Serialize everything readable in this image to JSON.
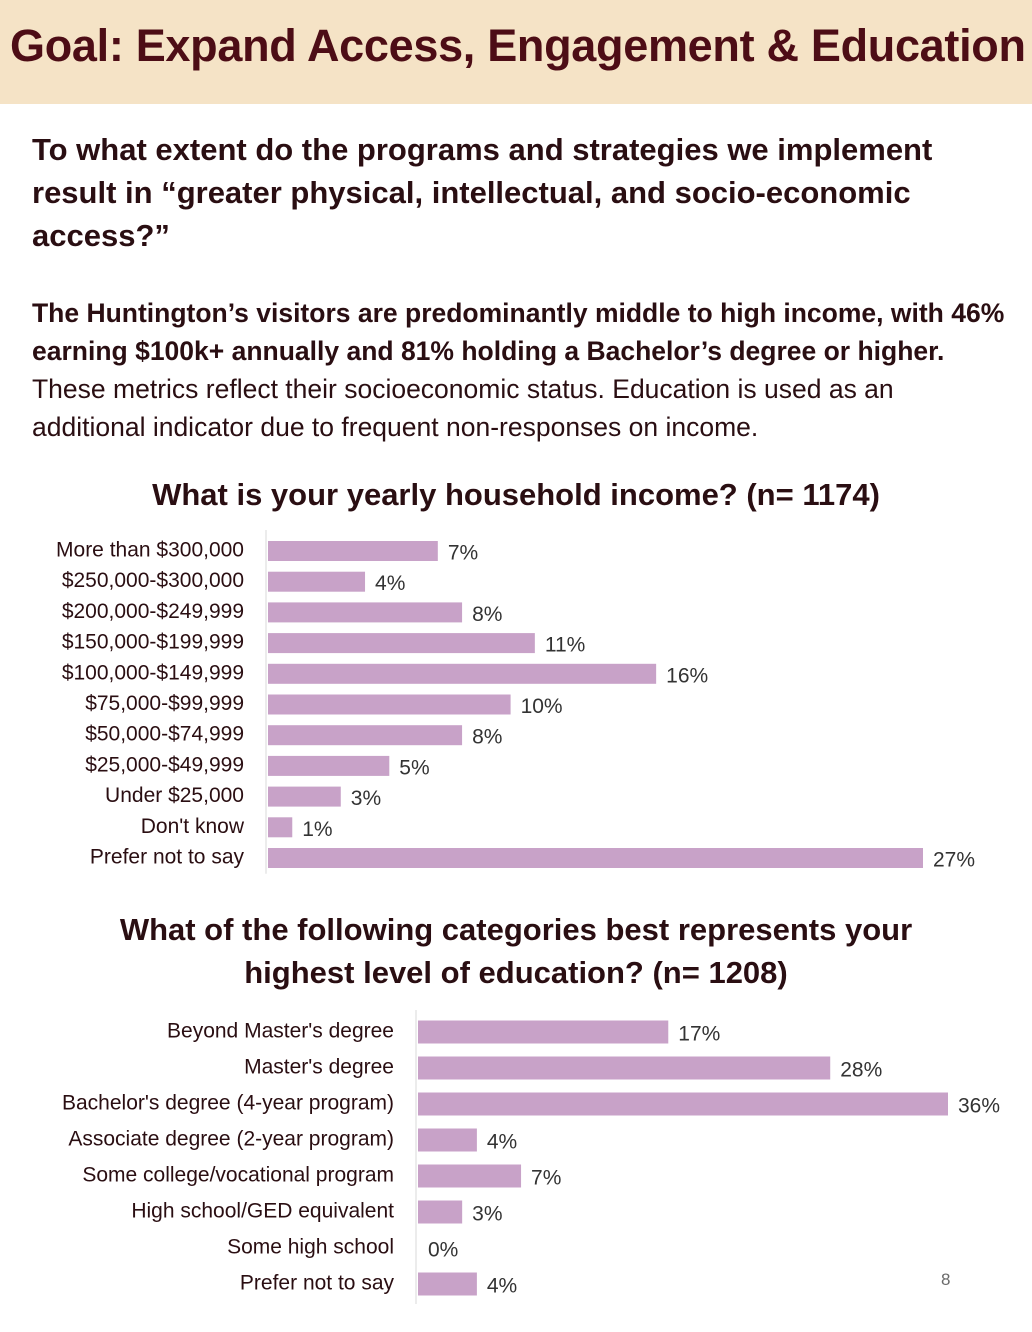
{
  "header": {
    "title": "Goal: Expand Access, Engagement & Education"
  },
  "question": "To what extent do the programs and strategies we implement result in “greater physical, intellectual, and socio-economic access?”",
  "summary": {
    "bold_text": "The Huntington’s visitors are predominantly middle to high income, with 46% earning $100k+ annually and 81% holding a Bachelor’s degree or higher.",
    "regular_text": " These metrics reflect their socioeconomic status. Education is used as an additional indicator due to frequent non-responses on income."
  },
  "colors": {
    "bar": "#c8a2c8",
    "header_band": "#f5e3c6",
    "header_text": "#4d0d16",
    "text": "#2a0e12"
  },
  "chart_data": [
    {
      "type": "bar",
      "orientation": "horizontal",
      "title": "What is your yearly household income? (n= 1174)",
      "categories": [
        "More than $300,000",
        "$250,000-$300,000",
        "$200,000-$249,999",
        "$150,000-$199,999",
        "$100,000-$149,999",
        "$75,000-$99,999",
        "$50,000-$74,999",
        "$25,000-$49,999",
        "Under $25,000",
        "Don't know",
        "Prefer not to say"
      ],
      "values": [
        7,
        4,
        8,
        11,
        16,
        10,
        8,
        5,
        3,
        1,
        27
      ],
      "value_labels": [
        "7%",
        "4%",
        "8%",
        "11%",
        "16%",
        "10%",
        "8%",
        "5%",
        "3%",
        "1%",
        "27%"
      ],
      "unit": "%",
      "xlim": [
        0,
        27
      ],
      "grid": false,
      "legend": "none"
    },
    {
      "type": "bar",
      "orientation": "horizontal",
      "title": "What of the following categories best represents your highest level of education? (n= 1208)",
      "categories": [
        "Beyond Master's degree",
        "Master's degree",
        "Bachelor's degree (4-year program)",
        "Associate degree (2-year program)",
        "Some college/vocational program",
        "High school/GED equivalent",
        "Some high school",
        "Prefer not to say"
      ],
      "values": [
        17,
        28,
        36,
        4,
        7,
        3,
        0,
        4
      ],
      "value_labels": [
        "17%",
        "28%",
        "36%",
        "4%",
        "7%",
        "3%",
        "0%",
        "4%"
      ],
      "unit": "%",
      "xlim": [
        0,
        36
      ],
      "grid": false,
      "legend": "none"
    }
  ],
  "page_number": "8"
}
